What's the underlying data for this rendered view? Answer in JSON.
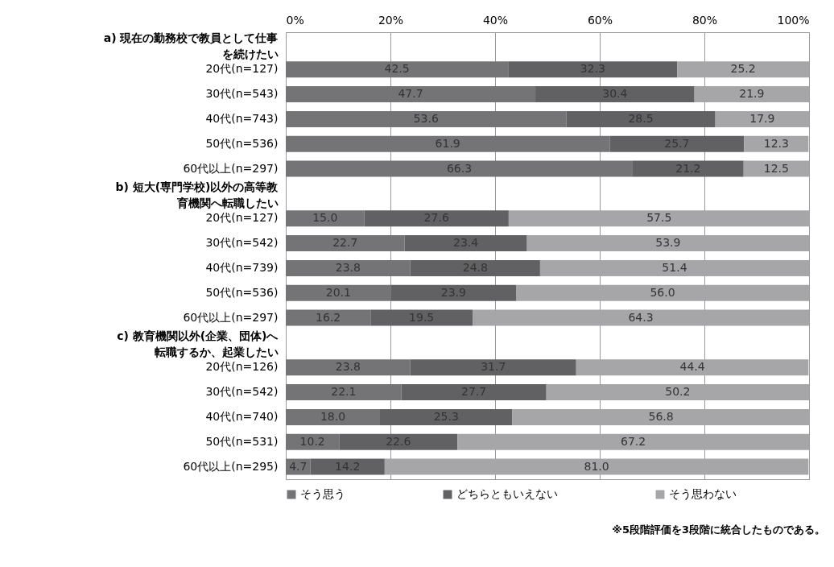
{
  "chart_data": {
    "type": "bar",
    "orientation": "horizontal",
    "stacked": true,
    "categories": [
      "a) 現在の勤務校で教員として仕事を続けたい",
      "20代(n=127)",
      "30代(n=543)",
      "40代(n=743)",
      "50代(n=536)",
      "60代以上(n=297)",
      "b) 短大(専門学校)以外の高等教育機関へ転職したい",
      "20代(n=127)",
      "30代(n=542)",
      "40代(n=739)",
      "50代(n=536)",
      "60代以上(n=297)",
      "c) 教育機関以外(企業、団体)へ転職するか、起業したい",
      "20代(n=126)",
      "30代(n=542)",
      "40代(n=740)",
      "50代(n=531)",
      "60代以上(n=295)"
    ],
    "series": [
      {
        "name": "そう思う",
        "color": "#747476",
        "values": [
          null,
          42.5,
          47.7,
          53.6,
          61.9,
          66.3,
          null,
          15.0,
          22.7,
          23.8,
          20.1,
          16.2,
          null,
          23.8,
          22.1,
          18.0,
          10.2,
          4.7
        ],
        "value_labels": [
          null,
          "42.5",
          "47.7",
          "53.6",
          "61.9",
          "66.3",
          null,
          "15.0",
          "22.7",
          "23.8",
          "20.1",
          "16.2",
          null,
          "23.8",
          "22.1",
          "18.0",
          "10.2",
          "4.7"
        ]
      },
      {
        "name": "どちらともいえない",
        "color": "#616163",
        "values": [
          null,
          32.3,
          30.4,
          28.5,
          25.7,
          21.2,
          null,
          27.6,
          23.4,
          24.8,
          23.9,
          19.5,
          null,
          31.7,
          27.7,
          25.3,
          22.6,
          14.2
        ],
        "value_labels": [
          null,
          "32.3",
          "30.4",
          "28.5",
          "25.7",
          "21.2",
          null,
          "27.6",
          "23.4",
          "24.8",
          "23.9",
          "19.5",
          null,
          "31.7",
          "27.7",
          "25.3",
          "22.6",
          "14.2"
        ]
      },
      {
        "name": "そう思わない",
        "color": "#a6a6a8",
        "values": [
          null,
          25.2,
          21.9,
          17.9,
          12.3,
          12.5,
          null,
          57.5,
          53.9,
          51.4,
          56.0,
          64.3,
          null,
          44.4,
          50.2,
          56.8,
          67.2,
          81.0
        ],
        "value_labels": [
          null,
          "25.2",
          "21.9",
          "17.9",
          "12.3",
          "12.5",
          null,
          "57.5",
          "53.9",
          "51.4",
          "56.0",
          "64.3",
          null,
          "44.4",
          "50.2",
          "56.8",
          "67.2",
          "81.0"
        ]
      }
    ],
    "xlim": [
      0,
      100
    ],
    "xticks": [
      {
        "value": 0,
        "label": "0%"
      },
      {
        "value": 20,
        "label": "20%"
      },
      {
        "value": 40,
        "label": "40%"
      },
      {
        "value": 60,
        "label": "60%"
      },
      {
        "value": 80,
        "label": "80%"
      },
      {
        "value": 100,
        "label": "100%"
      }
    ],
    "grid": "x",
    "legend": "bottom",
    "data_labels": true,
    "annotations": [
      "※5段階評価を3段階に統合したものである。"
    ]
  }
}
